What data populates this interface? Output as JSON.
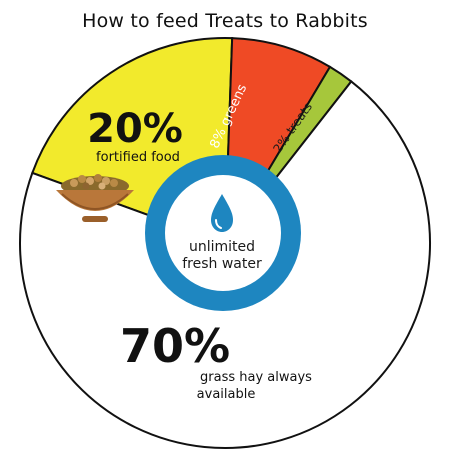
{
  "title": "How to feed Treats to Rabbits",
  "colors": {
    "hay": "#ffffff",
    "fortified_food": "#f2ea2c",
    "greens": "#ef4a25",
    "treats": "#a6c73b",
    "water_ring": "#1e86c0",
    "outline": "#111111"
  },
  "center_label": {
    "line1": "unlimited",
    "line2": "fresh water",
    "icon": "water-drop-icon"
  },
  "chart_data": {
    "type": "pie",
    "title": "How to feed Treats to Rabbits",
    "slices": [
      {
        "label": "grass hay always available",
        "value": 70,
        "pct_text": "70%",
        "color": "#ffffff"
      },
      {
        "label": "fortified food",
        "value": 20,
        "pct_text": "20%",
        "color": "#f2ea2c",
        "icon": "food-bowl-icon"
      },
      {
        "label": "8% greens",
        "value": 8,
        "color": "#ef4a25"
      },
      {
        "label": "2% treats",
        "value": 2,
        "color": "#a6c73b"
      }
    ],
    "center": "unlimited fresh water"
  },
  "labels": {
    "hay_pct": "70%",
    "hay_line1": "grass hay always",
    "hay_line2": "available",
    "food_pct": "20%",
    "food_text": "fortified food",
    "greens_text": "8% greens",
    "treats_text": "2% treats"
  }
}
